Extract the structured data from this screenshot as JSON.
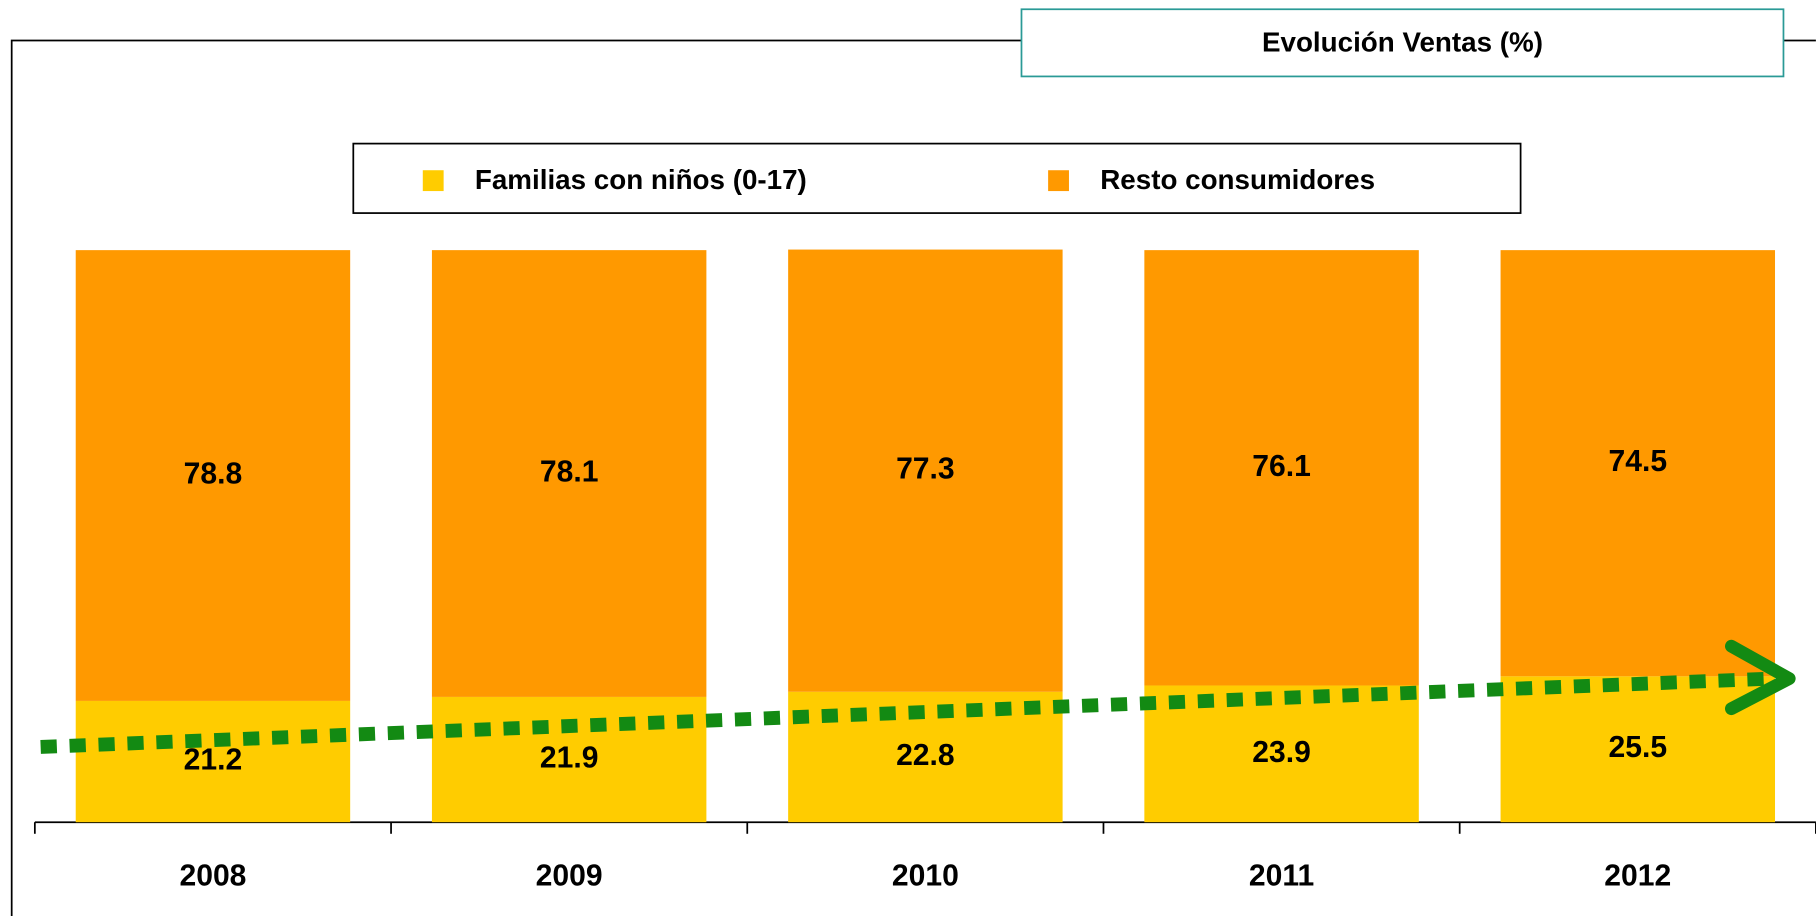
{
  "chart_data": {
    "type": "stacked_bar",
    "title": "Evolución Ventas (%)",
    "categories": [
      "2008",
      "2009",
      "2010",
      "2011",
      "2012"
    ],
    "series": [
      {
        "name": "Familias con niños (0-17)",
        "color": "#FFCC00",
        "values": [
          21.2,
          21.9,
          22.8,
          23.9,
          25.5
        ]
      },
      {
        "name": "Resto consumidores",
        "color": "#FF9900",
        "values": [
          78.8,
          78.1,
          77.3,
          76.1,
          74.5
        ]
      }
    ],
    "ylim": [
      0,
      100
    ]
  }
}
